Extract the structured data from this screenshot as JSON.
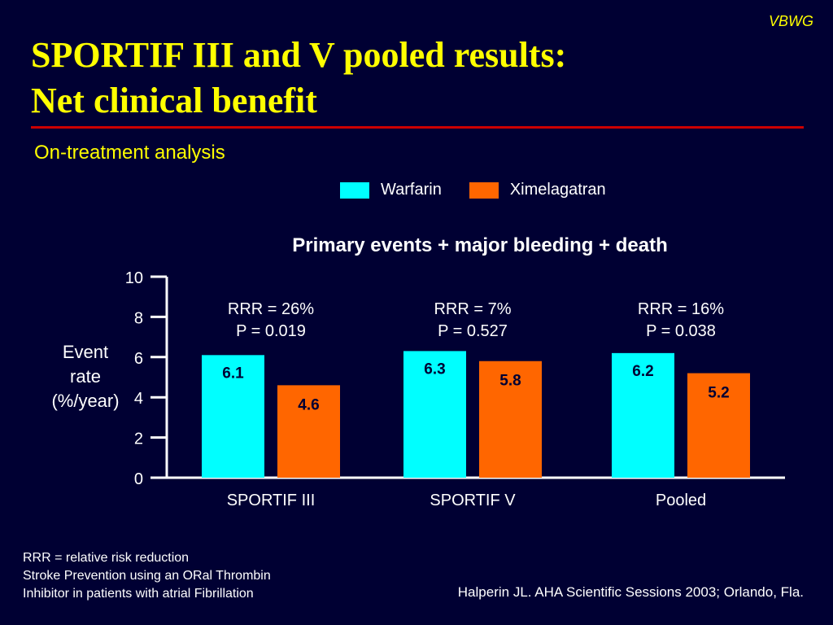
{
  "header": {
    "brand": "VBWG",
    "title_line1": "SPORTIF III and V pooled results:",
    "title_line2": "Net clinical benefit",
    "subtitle": "On-treatment analysis"
  },
  "chart_heading": "Primary events + major bleeding + death",
  "y_axis_label_lines": [
    "Event",
    "rate",
    "(%/year)"
  ],
  "colors": {
    "warfarin": "#00ffff",
    "ximelagatran": "#ff6600",
    "background": "#000033",
    "title": "#ffff00",
    "divider": "#cc0000"
  },
  "chart_data": {
    "type": "bar",
    "title": "Primary events + major bleeding + death",
    "xlabel": "",
    "ylabel": "Event rate (%/year)",
    "ylim": [
      0,
      10
    ],
    "yticks": [
      0,
      2,
      4,
      6,
      8,
      10
    ],
    "categories": [
      "SPORTIF III",
      "SPORTIF V",
      "Pooled"
    ],
    "series": [
      {
        "name": "Warfarin",
        "values": [
          6.1,
          6.3,
          6.2
        ]
      },
      {
        "name": "Ximelagatran",
        "values": [
          4.6,
          5.8,
          5.2
        ]
      }
    ],
    "annotations": [
      {
        "rrr": "RRR = 26%",
        "p": "P = 0.019"
      },
      {
        "rrr": "RRR = 7%",
        "p": "P = 0.527"
      },
      {
        "rrr": "RRR = 16%",
        "p": "P = 0.038"
      }
    ],
    "legend_position": "top-right"
  },
  "footnotes": [
    "RRR = relative risk reduction",
    "Stroke Prevention using an ORal Thrombin",
    "Inhibitor in patients with atrial Fibrillation"
  ],
  "citation": "Halperin JL. AHA Scientific Sessions 2003; Orlando, Fla."
}
